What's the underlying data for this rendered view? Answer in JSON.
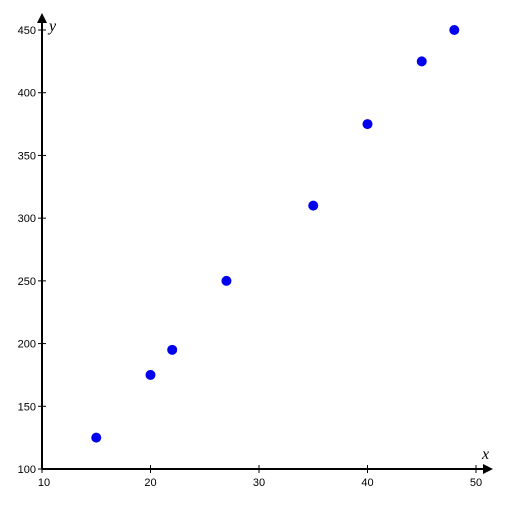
{
  "chart_data": {
    "type": "scatter",
    "title": "",
    "xlabel": "x",
    "ylabel": "y",
    "xlim": [
      10,
      50
    ],
    "ylim": [
      100,
      450
    ],
    "x_ticks": [
      10,
      20,
      30,
      40,
      50
    ],
    "y_ticks": [
      100,
      150,
      200,
      250,
      300,
      350,
      400,
      450
    ],
    "grid": false,
    "legend": "none",
    "point_color": "#0000ee",
    "series": [
      {
        "points": [
          {
            "x": 15,
            "y": 125
          },
          {
            "x": 20,
            "y": 175
          },
          {
            "x": 22,
            "y": 195
          },
          {
            "x": 27,
            "y": 250
          },
          {
            "x": 35,
            "y": 310
          },
          {
            "x": 40,
            "y": 375
          },
          {
            "x": 45,
            "y": 425
          },
          {
            "x": 48,
            "y": 450
          }
        ]
      }
    ]
  }
}
